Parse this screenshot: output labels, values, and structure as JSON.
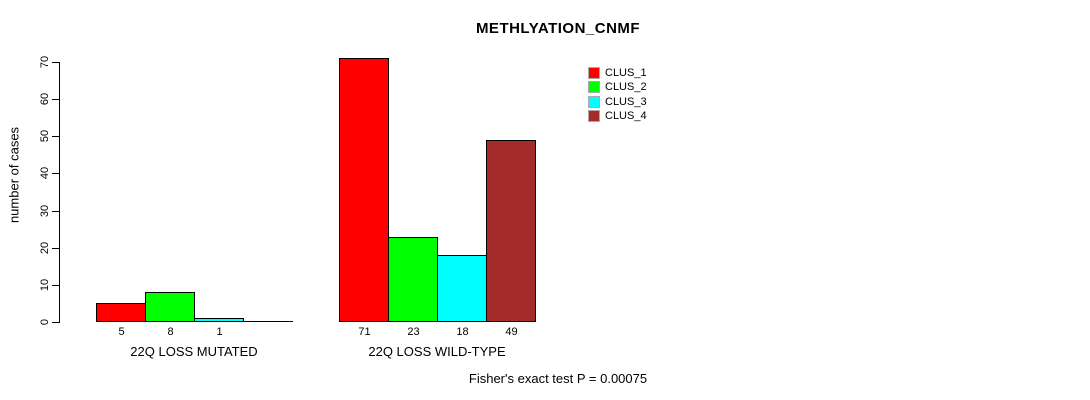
{
  "chart_data": {
    "type": "bar",
    "title": "METHLYATION_CNMF",
    "ylabel": "number of cases",
    "xlabel": "",
    "ylim": [
      0,
      70
    ],
    "yticks": [
      0,
      10,
      20,
      30,
      40,
      50,
      60,
      70
    ],
    "categories": [
      "22Q LOSS MUTATED",
      "22Q LOSS WILD-TYPE"
    ],
    "series": [
      {
        "name": "CLUS_1",
        "color": "#ff0000",
        "values": [
          5,
          71
        ]
      },
      {
        "name": "CLUS_2",
        "color": "#00ff00",
        "values": [
          8,
          23
        ]
      },
      {
        "name": "CLUS_3",
        "color": "#00ffff",
        "values": [
          1,
          18
        ]
      },
      {
        "name": "CLUS_4",
        "color": "#a52a2a",
        "values": [
          0,
          49
        ]
      }
    ],
    "bar_value_labels": {
      "group_1": [
        5,
        8,
        1
      ],
      "group_2": [
        71,
        23,
        18,
        49
      ]
    },
    "legend": {
      "position": "top-right",
      "entries": [
        "CLUS_1",
        "CLUS_2",
        "CLUS_3",
        "CLUS_4"
      ]
    },
    "annotation": "Fisher's exact test P = 0.00075",
    "grid": false,
    "background": "#ffffff",
    "bar_border_color": "#000000"
  }
}
